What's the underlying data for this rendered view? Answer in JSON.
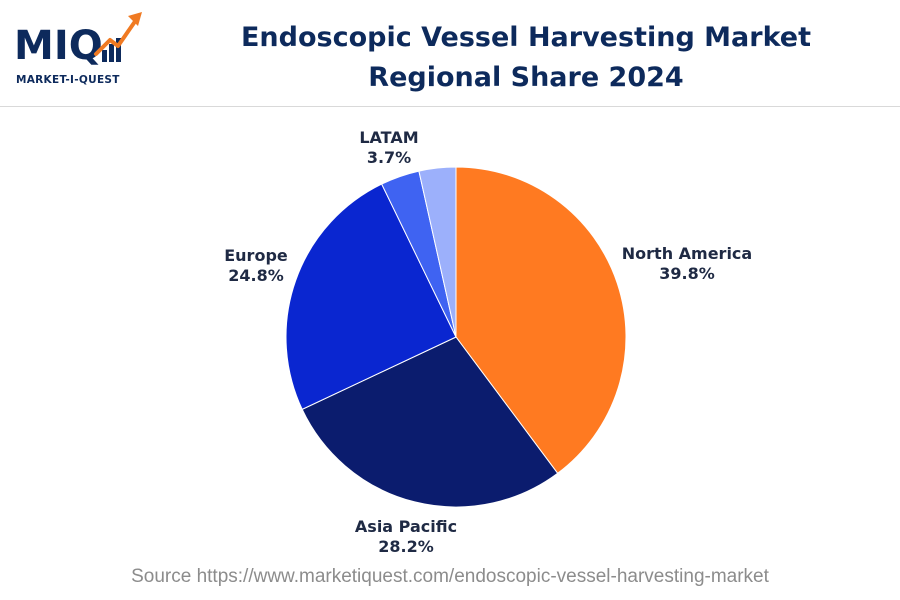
{
  "logo": {
    "mark": "MIQ",
    "mark_m": "M",
    "mark_i": "I",
    "mark_q": "Q",
    "tagline": "MARKET-I-QUEST",
    "icon": "trending-up-arrow-icon",
    "arrow_color": "#f07a22"
  },
  "title": "Endoscopic Vessel Harvesting Market Regional Share 2024",
  "source": "Source https://www.marketiquest.com/endoscopic-vessel-harvesting-market",
  "chart_data": {
    "type": "pie",
    "title": "Endoscopic Vessel Harvesting Market Regional Share 2024",
    "slices": [
      {
        "label": "North America",
        "value": 39.8,
        "value_label": "39.8%",
        "color": "#ff7a21"
      },
      {
        "label": "Asia Pacific",
        "value": 28.2,
        "value_label": "28.2%",
        "color": "#0b1c6e"
      },
      {
        "label": "Europe",
        "value": 24.8,
        "value_label": "24.8%",
        "color": "#0a26d0"
      },
      {
        "label": "LATAM",
        "value": 3.7,
        "value_label": "3.7%",
        "color": "#3f63f2"
      },
      {
        "label": "",
        "value": 3.5,
        "value_label": "",
        "color": "#9cb0fb"
      }
    ],
    "start_angle": "12 o'clock",
    "direction": "clockwise",
    "legend": "none"
  }
}
